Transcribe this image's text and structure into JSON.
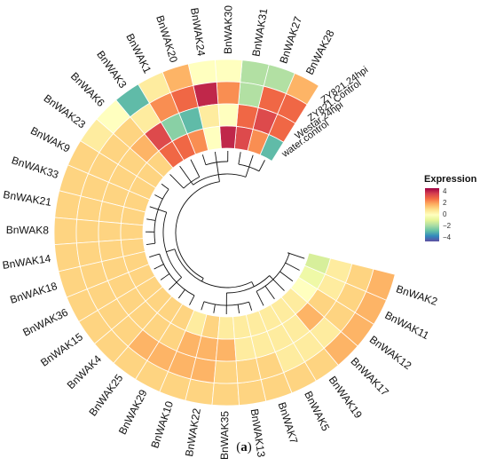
{
  "chart_data": {
    "type": "heatmap",
    "layout": "circular",
    "title": "",
    "conditions": [
      "ZY821.24hpi",
      "ZY821.Control",
      "Westar.24hpi",
      "water.control"
    ],
    "genes": [
      "BnWAK28",
      "BnWAK27",
      "BnWAK31",
      "BnWAK30",
      "BnWAK24",
      "BnWAK20",
      "BnWAK1",
      "BnWAK3",
      "BnWAK6",
      "BnWAK23",
      "BnWAK9",
      "BnWAK33",
      "BnWAK21",
      "BnWAK8",
      "BnWAK14",
      "BnWAK18",
      "BnWAK36",
      "BnWAK15",
      "BnWAK4",
      "BnWAK25",
      "BnWAK29",
      "BnWAK10",
      "BnWAK22",
      "BnWAK35",
      "BnWAK13",
      "BnWAK7",
      "BnWAK5",
      "BnWAK19",
      "BnWAK17",
      "BnWAK12",
      "BnWAK11",
      "BnWAK2"
    ],
    "values": [
      [
        1.5,
        2.5,
        2.5,
        -2.5
      ],
      [
        -1.5,
        2.5,
        3.0,
        2.0
      ],
      [
        -1.5,
        -1.5,
        2.5,
        3.0
      ],
      [
        0.0,
        2.0,
        0.0,
        3.5
      ],
      [
        0.0,
        3.5,
        0.5,
        0.0
      ],
      [
        1.5,
        2.5,
        -2.5,
        2.0
      ],
      [
        0.5,
        2.0,
        -2.0,
        2.5
      ],
      [
        -2.5,
        0.5,
        3.0,
        2.5
      ],
      [
        0.0,
        1.0,
        1.5,
        1.0
      ],
      [
        0.5,
        1.0,
        1.0,
        1.0
      ],
      [
        1.0,
        1.0,
        1.0,
        1.0
      ],
      [
        1.0,
        1.0,
        1.0,
        1.0
      ],
      [
        1.0,
        1.0,
        1.0,
        1.0
      ],
      [
        1.0,
        1.0,
        1.0,
        1.0
      ],
      [
        1.0,
        1.0,
        1.0,
        1.0
      ],
      [
        1.0,
        1.0,
        1.0,
        1.0
      ],
      [
        1.0,
        1.0,
        1.0,
        1.0
      ],
      [
        1.0,
        1.0,
        1.0,
        1.0
      ],
      [
        1.0,
        1.0,
        1.0,
        1.0
      ],
      [
        1.0,
        1.5,
        1.0,
        1.0
      ],
      [
        1.0,
        1.5,
        1.0,
        1.0
      ],
      [
        1.0,
        1.5,
        1.5,
        0.5
      ],
      [
        1.0,
        1.5,
        1.5,
        1.0
      ],
      [
        1.0,
        1.0,
        1.5,
        0.5
      ],
      [
        1.0,
        1.0,
        0.5,
        0.5
      ],
      [
        1.0,
        1.0,
        0.5,
        0.5
      ],
      [
        1.0,
        0.5,
        0.5,
        0.5
      ],
      [
        1.0,
        0.5,
        0.5,
        0.5
      ],
      [
        1.5,
        0.5,
        1.5,
        0.5
      ],
      [
        1.5,
        1.0,
        1.0,
        0.0
      ],
      [
        1.5,
        1.0,
        0.5,
        -0.5
      ],
      [
        1.5,
        1.0,
        0.5,
        -1.0
      ]
    ],
    "legend": {
      "title": "Expression",
      "ticks": [
        "4",
        "2",
        "0",
        "−2",
        "−4"
      ],
      "range": [
        -4,
        4
      ],
      "colors": [
        "#5E4FA2",
        "#3288BD",
        "#66C2A5",
        "#ABDDA4",
        "#E6F598",
        "#FFFFBF",
        "#FEE08B",
        "#FDAE61",
        "#F46D43",
        "#D53E4F",
        "#9E0142"
      ]
    },
    "dendrogram": true,
    "caption_label": "a"
  }
}
